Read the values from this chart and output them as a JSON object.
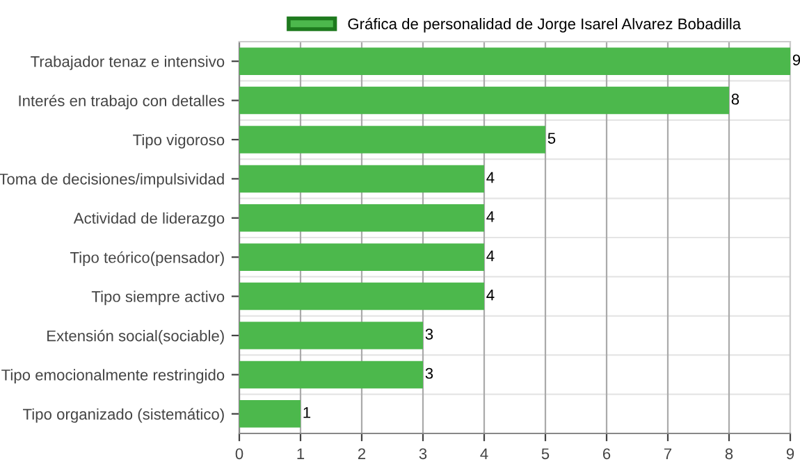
{
  "chart_data": {
    "type": "bar",
    "orientation": "horizontal",
    "categories": [
      "Trabajador tenaz e intensivo",
      "Interés en trabajo con detalles",
      "Tipo vigoroso",
      "Toma de decisiones/impulsividad",
      "Actividad de liderazgo",
      "Tipo teórico(pensador)",
      "Tipo siempre activo",
      "Extensión social(sociable)",
      "Tipo emocionalmente restringido",
      "Tipo organizado (sistemático)"
    ],
    "series": [
      {
        "name": "Gráfica de personalidad de Jorge Isarel Alvarez Bobadilla",
        "color": "#4cb84c",
        "values": [
          9,
          8,
          5,
          4,
          4,
          4,
          4,
          3,
          3,
          1
        ]
      }
    ],
    "xlim": [
      0,
      9
    ],
    "xticks": [
      0,
      1,
      2,
      3,
      4,
      5,
      6,
      7,
      8,
      9
    ],
    "grid": true,
    "legend": "top",
    "data_labels": true
  }
}
